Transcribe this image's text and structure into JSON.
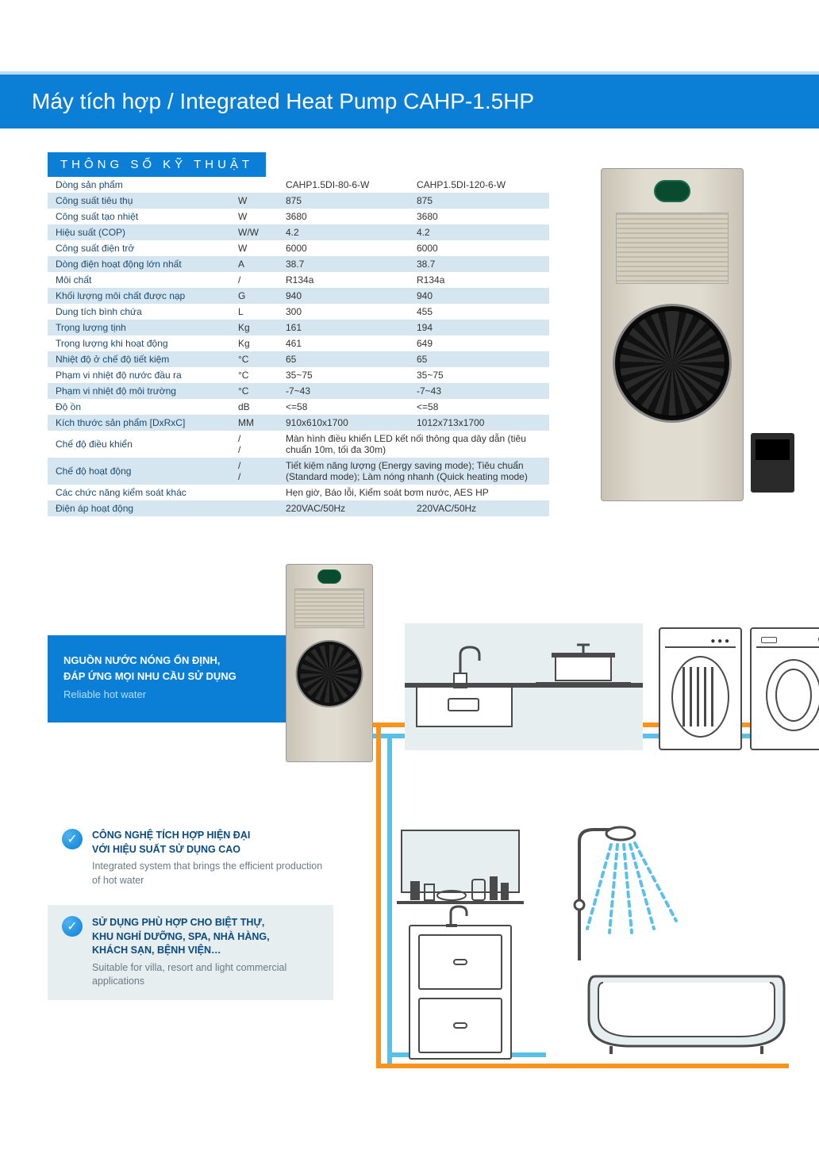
{
  "title": "Máy tích hợp / Integrated Heat Pump CAHP-1.5HP",
  "spec_header": "THÔNG SỐ KỸ THUẬT",
  "colors": {
    "brand_blue": "#0b7fd6",
    "row_alt": "#d6e6f0",
    "hot_pipe": "#f7941d",
    "cold_pipe": "#5bc0e8",
    "feature_bg": "#e6eef0",
    "text_dark": "#333333",
    "label_blue": "#1a4a6e"
  },
  "table": {
    "columns": [
      "",
      "",
      "CAHP1.5DI-80-6-W",
      "CAHP1.5DI-120-6-W"
    ],
    "rows": [
      {
        "label": "Dòng sản phẩm",
        "unit": "",
        "c1": "CAHP1.5DI-80-6-W",
        "c2": "CAHP1.5DI-120-6-W"
      },
      {
        "label": "Công suất tiêu thụ",
        "unit": "W",
        "c1": "875",
        "c2": "875"
      },
      {
        "label": "Công suất tạo nhiệt",
        "unit": "W",
        "c1": "3680",
        "c2": "3680"
      },
      {
        "label": "Hiệu suất (COP)",
        "unit": "W/W",
        "c1": "4.2",
        "c2": "4.2"
      },
      {
        "label": "Công suất điện trở",
        "unit": "W",
        "c1": "6000",
        "c2": "6000"
      },
      {
        "label": "Dòng điện hoạt động lớn nhất",
        "unit": "A",
        "c1": "38.7",
        "c2": "38.7"
      },
      {
        "label": "Môi chất",
        "unit": "/",
        "c1": "R134a",
        "c2": "R134a"
      },
      {
        "label": "Khối lượng môi chất được nạp",
        "unit": "G",
        "c1": "940",
        "c2": "940"
      },
      {
        "label": "Dung tích bình chứa",
        "unit": "L",
        "c1": "300",
        "c2": "455"
      },
      {
        "label": "Trọng lượng tịnh",
        "unit": "Kg",
        "c1": "161",
        "c2": "194"
      },
      {
        "label": "Trọng lượng khi hoạt động",
        "unit": "Kg",
        "c1": "461",
        "c2": "649"
      },
      {
        "label": "Nhiệt độ ở chế độ tiết kiệm",
        "unit": "°C",
        "c1": "65",
        "c2": "65"
      },
      {
        "label": "Phạm vi nhiệt độ nước đầu ra",
        "unit": "°C",
        "c1": "35~75",
        "c2": "35~75"
      },
      {
        "label": "Phạm vi nhiệt độ môi trường",
        "unit": "°C",
        "c1": "-7~43",
        "c2": "-7~43"
      },
      {
        "label": "Độ ồn",
        "unit": "dB",
        "c1": "<=58",
        "c2": "<=58"
      },
      {
        "label": "Kích thước sản phẩm [DxRxC]",
        "unit": "MM",
        "c1": "910x610x1700",
        "c2": "1012x713x1700"
      }
    ],
    "merged": [
      {
        "label": "Chế độ điều khiển",
        "unit1": "/",
        "unit2": "/",
        "text": "Màn hình điều khiển LED kết nối thông qua dây dẫn (tiêu chuẩn 10m, tối đa 30m)"
      },
      {
        "label": "Chế độ hoạt động",
        "unit1": "/",
        "unit2": "/",
        "text": "Tiết kiệm năng lượng (Energy saving mode); Tiêu chuẩn (Standard mode); Làm nóng nhanh (Quick heating mode)"
      }
    ],
    "tail": [
      {
        "label": "Các chức năng kiểm soát khác",
        "unit": "",
        "c1": "Hẹn giờ, Báo lỗi, Kiểm soát bơm nước, AES HP",
        "c2": ""
      },
      {
        "label": "Điện áp hoạt động",
        "unit": "",
        "c1": "220VAC/50Hz",
        "c2": "220VAC/50Hz"
      }
    ]
  },
  "blue_box": {
    "vn_line1": "NGUỒN NƯỚC NÓNG ỔN ĐỊNH,",
    "vn_line2": "ĐÁP ỨNG MỌI NHU CẦU SỬ DỤNG",
    "en": "Reliable hot water"
  },
  "feature1": {
    "vn_line1": "CÔNG NGHỆ TÍCH HỢP HIỆN ĐẠI",
    "vn_line2": "VỚI HIỆU SUẤT SỬ DỤNG CAO",
    "en": "Integrated system that brings the efficient production of hot water"
  },
  "feature2": {
    "vn_line1": "SỬ DỤNG PHÙ HỢP CHO BIỆT THỰ,",
    "vn_line2": "KHU NGHỈ DƯỠNG, SPA, NHÀ HÀNG,",
    "vn_line3": "KHÁCH SẠN, BỆNH VIỆN…",
    "en": "Suitable for villa, resort and light commercial applications"
  }
}
